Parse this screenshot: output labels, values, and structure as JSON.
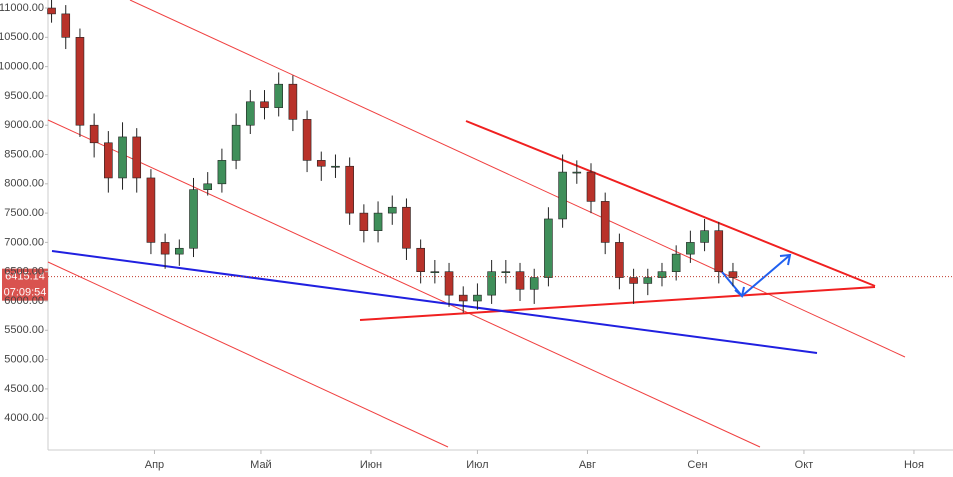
{
  "chart_data": {
    "type": "candlestick",
    "x": [
      2,
      6,
      10,
      14,
      18,
      22,
      26,
      30,
      34,
      38,
      42,
      46,
      50,
      54,
      58,
      62,
      66,
      70,
      74,
      78,
      82,
      86,
      90,
      94,
      98,
      102,
      106,
      110,
      114,
      118,
      122,
      126,
      130,
      134,
      138,
      142,
      146,
      150,
      154,
      158,
      162,
      166,
      170,
      174,
      178,
      182,
      186,
      190,
      194
    ],
    "open": [
      11000,
      10900,
      10500,
      9000,
      8700,
      8100,
      8800,
      8100,
      7000,
      6800,
      6900,
      7900,
      8000,
      8400,
      9000,
      9400,
      9300,
      9700,
      9100,
      8400,
      8300,
      8300,
      7500,
      7200,
      7500,
      7600,
      6900,
      6500,
      6500,
      6100,
      6000,
      6100,
      6500,
      6500,
      6200,
      6400,
      7400,
      8200,
      8200,
      7700,
      7000,
      6400,
      6300,
      6400,
      6500,
      6800,
      7000,
      7200,
      6500
    ],
    "high": [
      11150,
      11050,
      10650,
      9200,
      8900,
      9050,
      8950,
      8250,
      7150,
      7050,
      8100,
      8200,
      8600,
      9200,
      9600,
      9600,
      9900,
      9850,
      9250,
      8550,
      8500,
      8450,
      7650,
      7700,
      7800,
      7750,
      7050,
      6700,
      6650,
      6250,
      6300,
      6700,
      6700,
      6650,
      6550,
      7600,
      8500,
      8400,
      8350,
      7850,
      7150,
      6550,
      6550,
      6650,
      6950,
      7200,
      7400,
      7350,
      6650
    ],
    "low": [
      10750,
      10300,
      8800,
      8450,
      7850,
      7900,
      7850,
      6800,
      6550,
      6600,
      6750,
      7800,
      7850,
      8250,
      8850,
      9100,
      9150,
      8900,
      8200,
      8050,
      8100,
      7300,
      7000,
      7000,
      7300,
      6700,
      6300,
      6300,
      5900,
      5800,
      5850,
      5950,
      6300,
      6000,
      5950,
      6250,
      7250,
      8000,
      7500,
      6800,
      6200,
      5950,
      6100,
      6250,
      6350,
      6650,
      6850,
      6300,
      6250
    ],
    "close": [
      10900,
      10500,
      9000,
      8700,
      8100,
      8800,
      8100,
      7000,
      6800,
      6900,
      7900,
      8000,
      8400,
      9000,
      9400,
      9300,
      9700,
      9100,
      8400,
      8300,
      8300,
      7500,
      7200,
      7500,
      7600,
      6900,
      6500,
      6500,
      6100,
      6000,
      6100,
      6500,
      6500,
      6200,
      6400,
      7400,
      8200,
      8200,
      7700,
      7000,
      6400,
      6300,
      6400,
      6500,
      6800,
      7000,
      7200,
      6500,
      6400
    ],
    "up_color": "#3f8f5a",
    "down_color": "#b8322a",
    "xlim": [
      1,
      256
    ],
    "ylim": [
      3457,
      11137
    ],
    "xticks": [
      {
        "value": 31,
        "label": "Апр"
      },
      {
        "value": 61,
        "label": "Май"
      },
      {
        "value": 92,
        "label": "Июн"
      },
      {
        "value": 122,
        "label": "Июл"
      },
      {
        "value": 153,
        "label": "Авг"
      },
      {
        "value": 184,
        "label": "Сен"
      },
      {
        "value": 214,
        "label": "Окт"
      },
      {
        "value": 245,
        "label": "Ноя"
      }
    ],
    "yticks": [
      {
        "value": 4000,
        "label": "4000.00"
      },
      {
        "value": 4500,
        "label": "4500.00"
      },
      {
        "value": 5000,
        "label": "5000.00"
      },
      {
        "value": 5500,
        "label": "5500.00"
      },
      {
        "value": 6000,
        "label": "6000.00"
      },
      {
        "value": 6500,
        "label": "6500.00"
      },
      {
        "value": 7000,
        "label": "7000.00"
      },
      {
        "value": 7500,
        "label": "7500.00"
      },
      {
        "value": 8000,
        "label": "8000.00"
      },
      {
        "value": 8500,
        "label": "8500.00"
      },
      {
        "value": 9000,
        "label": "9000.00"
      },
      {
        "value": 9500,
        "label": "9500.00"
      },
      {
        "value": 10000,
        "label": "10000.00"
      },
      {
        "value": 10500,
        "label": "10500.00"
      },
      {
        "value": 11000,
        "label": "11000.00"
      }
    ],
    "last_price": 6415.14,
    "countdown": "07:09:54"
  }
}
